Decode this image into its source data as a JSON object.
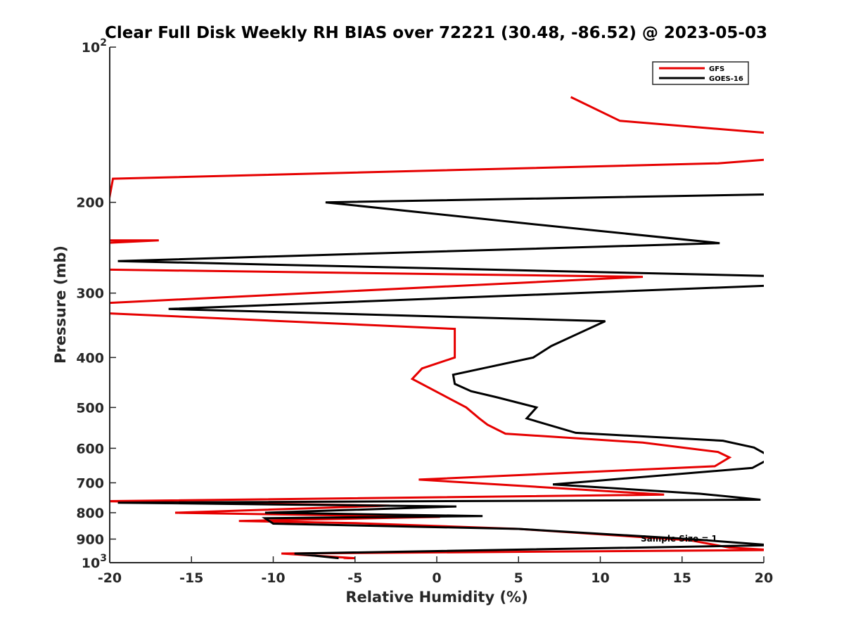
{
  "chart_data": {
    "type": "line",
    "title": "Clear Full Disk Weekly RH BIAS over 72221 (30.48, -86.52) @ 2023-05-03",
    "xlabel": "Relative Humidity (%)",
    "ylabel": "Pressure (mb)",
    "xlim": [
      -20,
      20
    ],
    "ylim": [
      100,
      1000
    ],
    "yscale": "log",
    "y_reversed": true,
    "x_ticks": [
      "-20",
      "-15",
      "-10",
      "-5",
      "0",
      "5",
      "10",
      "15",
      "20"
    ],
    "y_ticks": [
      {
        "value": 100,
        "label": "10",
        "sup": "2"
      },
      {
        "value": 200,
        "label": "200"
      },
      {
        "value": 300,
        "label": "300"
      },
      {
        "value": 400,
        "label": "400"
      },
      {
        "value": 500,
        "label": "500"
      },
      {
        "value": 600,
        "label": "600"
      },
      {
        "value": 700,
        "label": "700"
      },
      {
        "value": 800,
        "label": "800"
      },
      {
        "value": 900,
        "label": "900"
      },
      {
        "value": 1000,
        "label": "10",
        "sup": "3"
      }
    ],
    "legend_position": "top-right",
    "annotation": "Sample Size = 1",
    "series": [
      {
        "name": "GFS",
        "color": "#e60000",
        "points": [
          [
            8.2,
            125
          ],
          [
            11.2,
            139
          ],
          [
            20.5,
            147
          ],
          [
            20.5,
            165
          ],
          [
            17.2,
            168
          ],
          [
            -19.8,
            180
          ],
          [
            -20.5,
            237
          ],
          [
            -17,
            237
          ],
          [
            -20.5,
            240
          ],
          [
            -20.5,
            270
          ],
          [
            12.6,
            279
          ],
          [
            -20.5,
            314
          ],
          [
            -20.5,
            328
          ],
          [
            1.1,
            352
          ],
          [
            1.1,
            375
          ],
          [
            1.1,
            400
          ],
          [
            -0.9,
            420
          ],
          [
            -1.5,
            440
          ],
          [
            1.8,
            500
          ],
          [
            2.6,
            525
          ],
          [
            3.1,
            540
          ],
          [
            4.2,
            562
          ],
          [
            12.6,
            585
          ],
          [
            17.2,
            610
          ],
          [
            17.9,
            625
          ],
          [
            17,
            650
          ],
          [
            -1.1,
            690
          ],
          [
            13.9,
            738
          ],
          [
            -20.5,
            760
          ],
          [
            -2.9,
            775
          ],
          [
            -16,
            800
          ],
          [
            0.2,
            815
          ],
          [
            -12.1,
            830
          ],
          [
            -5,
            838
          ],
          [
            5,
            860
          ],
          [
            15.5,
            905
          ],
          [
            17.9,
            935
          ],
          [
            20.5,
            945
          ],
          [
            -9.5,
            960
          ],
          [
            -5,
            980
          ],
          [
            -5.7,
            980
          ]
        ]
      },
      {
        "name": "GOES-16",
        "color": "#000000",
        "points": [
          [
            20.5,
            193
          ],
          [
            -6.8,
            200
          ],
          [
            6.8,
            222
          ],
          [
            17.3,
            240
          ],
          [
            -19.5,
            260
          ],
          [
            20.5,
            278
          ],
          [
            20.5,
            290
          ],
          [
            -16.4,
            322
          ],
          [
            10.3,
            340
          ],
          [
            8.6,
            360
          ],
          [
            7,
            380
          ],
          [
            5.9,
            400
          ],
          [
            3.1,
            418
          ],
          [
            1,
            432
          ],
          [
            1.1,
            450
          ],
          [
            2.1,
            465
          ],
          [
            3.7,
            478
          ],
          [
            6.1,
            500
          ],
          [
            5.5,
            525
          ],
          [
            8.5,
            560
          ],
          [
            17.5,
            580
          ],
          [
            19.4,
            598
          ],
          [
            20.5,
            625
          ],
          [
            19.3,
            655
          ],
          [
            7.1,
            705
          ],
          [
            16.1,
            735
          ],
          [
            19.8,
            755
          ],
          [
            -19.5,
            765
          ],
          [
            1.2,
            778
          ],
          [
            -10.5,
            800
          ],
          [
            2.8,
            812
          ],
          [
            -10.5,
            820
          ],
          [
            -10,
            840
          ],
          [
            5,
            860
          ],
          [
            15.5,
            900
          ],
          [
            20.5,
            925
          ],
          [
            -8.7,
            960
          ],
          [
            -6,
            980
          ]
        ]
      }
    ]
  }
}
